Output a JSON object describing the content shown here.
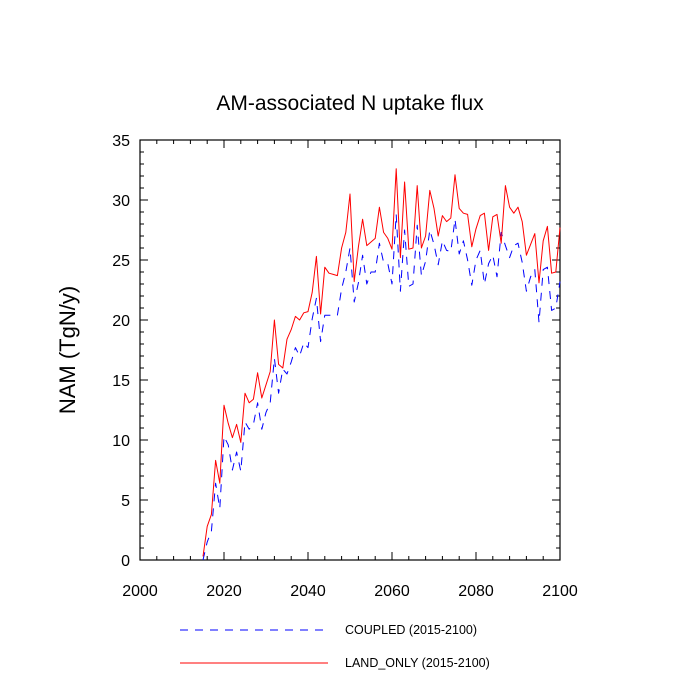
{
  "chart_data": {
    "type": "line",
    "title": "AM-associated N uptake flux",
    "xlabel": "",
    "ylabel": "NAM  (TgN/y)",
    "xlim": [
      2000,
      2100
    ],
    "ylim": [
      0,
      35
    ],
    "xticks": [
      "2000",
      "2020",
      "2040",
      "2060",
      "2080",
      "2100"
    ],
    "yticks": [
      "0",
      "5",
      "10",
      "15",
      "20",
      "25",
      "30",
      "35"
    ],
    "legend_position": "bottom",
    "series": [
      {
        "name": "COUPLED (2015-2100)",
        "color": "#0000ff",
        "dash": "dashed",
        "x": [
          2015,
          2016,
          2017,
          2018,
          2019,
          2020,
          2021,
          2022,
          2023,
          2024,
          2025,
          2026,
          2027,
          2028,
          2029,
          2030,
          2031,
          2032,
          2033,
          2034,
          2035,
          2036,
          2037,
          2038,
          2039,
          2040,
          2041,
          2042,
          2043,
          2044,
          2045,
          2046,
          2047,
          2048,
          2049,
          2050,
          2051,
          2052,
          2053,
          2054,
          2055,
          2056,
          2057,
          2058,
          2059,
          2060,
          2061,
          2062,
          2063,
          2064,
          2065,
          2066,
          2067,
          2068,
          2069,
          2070,
          2071,
          2072,
          2073,
          2074,
          2075,
          2076,
          2077,
          2078,
          2079,
          2080,
          2081,
          2082,
          2083,
          2084,
          2085,
          2086,
          2087,
          2088,
          2089,
          2090,
          2091,
          2092,
          2093,
          2094,
          2095,
          2096,
          2097,
          2098,
          2099,
          2100
        ],
        "values": [
          0,
          1.5,
          2.4,
          6.4,
          4.3,
          10.3,
          9.6,
          7.5,
          9.0,
          7.4,
          11.5,
          10.9,
          11.3,
          13.1,
          10.9,
          12.3,
          13.1,
          16.8,
          13.9,
          15.9,
          15.5,
          16.5,
          17.7,
          17.0,
          18.1,
          17.7,
          20.1,
          21.8,
          18.2,
          20.4,
          20.4,
          20.4,
          20.4,
          22.6,
          24.0,
          26.0,
          21.5,
          23.1,
          25.4,
          23.0,
          24.0,
          24.0,
          26.4,
          24.8,
          24.7,
          23.0,
          28.8,
          22.4,
          27.5,
          22.8,
          23.0,
          27.9,
          23.7,
          24.9,
          27.5,
          26.3,
          24.6,
          26.6,
          25.8,
          25.7,
          28.4,
          25.5,
          26.6,
          25.0,
          22.9,
          25.0,
          25.8,
          23.0,
          24.7,
          25.4,
          23.6,
          27.3,
          26.2,
          25.2,
          26.2,
          26.4,
          24.8,
          22.4,
          23.6,
          24.2,
          19.8,
          24.2,
          24.4,
          20.8,
          21.0,
          23.2
        ]
      },
      {
        "name": "LAND_ONLY (2015-2100)",
        "color": "#ff0000",
        "dash": "solid",
        "x": [
          2015,
          2016,
          2017,
          2018,
          2019,
          2020,
          2021,
          2022,
          2023,
          2024,
          2025,
          2026,
          2027,
          2028,
          2029,
          2030,
          2031,
          2032,
          2033,
          2034,
          2035,
          2036,
          2037,
          2038,
          2039,
          2040,
          2041,
          2042,
          2043,
          2044,
          2045,
          2046,
          2047,
          2048,
          2049,
          2050,
          2051,
          2052,
          2053,
          2054,
          2055,
          2056,
          2057,
          2058,
          2059,
          2060,
          2061,
          2062,
          2063,
          2064,
          2065,
          2066,
          2067,
          2068,
          2069,
          2070,
          2071,
          2072,
          2073,
          2074,
          2075,
          2076,
          2077,
          2078,
          2079,
          2080,
          2081,
          2082,
          2083,
          2084,
          2085,
          2086,
          2087,
          2088,
          2089,
          2090,
          2091,
          2092,
          2093,
          2094,
          2095,
          2096,
          2097,
          2098,
          2099,
          2100
        ],
        "values": [
          0.3,
          2.8,
          3.8,
          8.3,
          6.4,
          12.9,
          11.4,
          10.2,
          11.3,
          9.8,
          13.9,
          13.1,
          13.4,
          15.6,
          13.5,
          14.6,
          15.7,
          20.0,
          16.3,
          16.0,
          18.4,
          19.2,
          20.3,
          20.0,
          20.6,
          20.7,
          22.3,
          25.3,
          20.5,
          24.4,
          23.9,
          23.8,
          23.7,
          26.0,
          27.3,
          30.5,
          23.2,
          26.1,
          28.4,
          26.2,
          26.5,
          26.8,
          29.4,
          27.3,
          26.8,
          25.9,
          32.6,
          25.2,
          31.5,
          25.9,
          26.0,
          31.2,
          26.0,
          27.0,
          30.8,
          29.3,
          27.0,
          28.7,
          28.2,
          28.5,
          32.1,
          29.3,
          28.9,
          28.8,
          26.1,
          27.6,
          28.7,
          28.9,
          25.8,
          28.6,
          28.8,
          26.4,
          31.2,
          29.4,
          28.9,
          29.4,
          28.2,
          25.4,
          26.3,
          27.2,
          23.1,
          26.6,
          27.8,
          23.9,
          24.0,
          27.7
        ]
      }
    ]
  }
}
